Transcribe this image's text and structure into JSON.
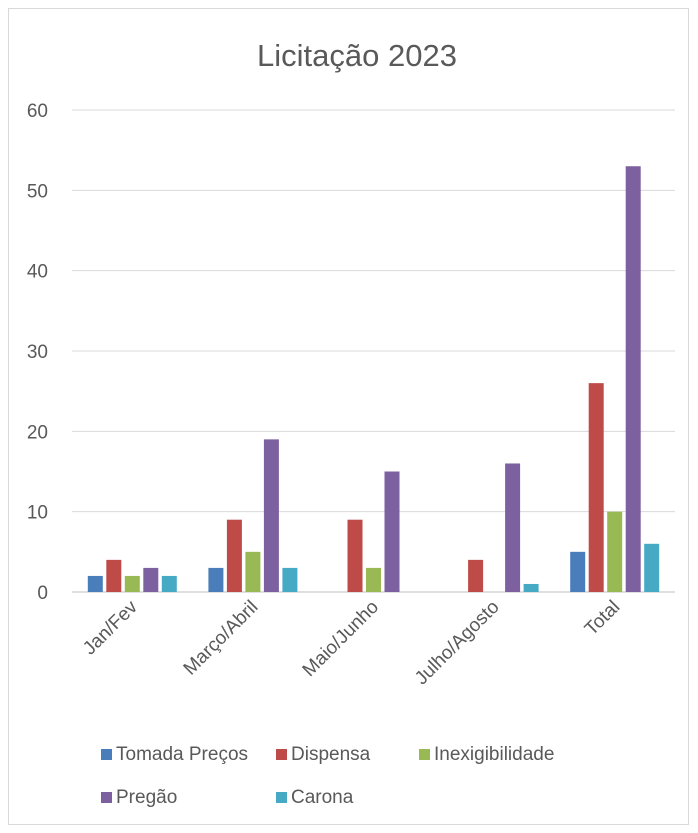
{
  "chart_data": {
    "type": "bar",
    "title": "Licitação 2023",
    "categories": [
      "Jan/Fev",
      "Março/Abril",
      "Maio/Junho",
      "Julho/Agosto",
      "Total"
    ],
    "series": [
      {
        "name": "Tomada Preços",
        "color": "#4a7ebb",
        "values": [
          2,
          3,
          null,
          null,
          5
        ]
      },
      {
        "name": "Dispensa",
        "color": "#be4b48",
        "values": [
          4,
          9,
          9,
          4,
          26
        ]
      },
      {
        "name": "Inexigibilidade",
        "color": "#98b954",
        "values": [
          2,
          5,
          3,
          null,
          10
        ]
      },
      {
        "name": "Pregão",
        "color": "#7d60a0",
        "values": [
          3,
          19,
          15,
          16,
          53
        ]
      },
      {
        "name": "Carona",
        "color": "#46aac5",
        "values": [
          2,
          3,
          null,
          1,
          6
        ]
      }
    ],
    "yticks": [
      "0",
      "10",
      "20",
      "30",
      "40",
      "50",
      "60"
    ],
    "ylim": [
      0,
      60
    ],
    "grid": true,
    "legend_position": "bottom"
  }
}
